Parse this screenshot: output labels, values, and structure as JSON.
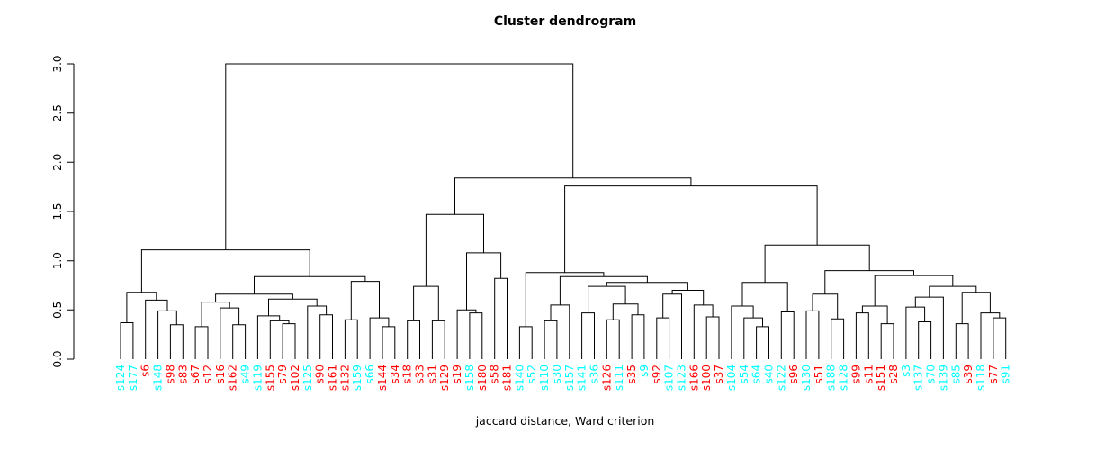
{
  "chart_data": {
    "type": "dendrogram",
    "title": "Cluster dendrogram",
    "xlabel": "jaccard distance, Ward criterion",
    "ylabel": "",
    "ylim": [
      0.0,
      3.0
    ],
    "yticks": [
      "0.0",
      "0.5",
      "1.0",
      "1.5",
      "2.0",
      "2.5",
      "3.0"
    ],
    "ytick_values": [
      0.0,
      0.5,
      1.0,
      1.5,
      2.0,
      2.5,
      3.0
    ],
    "grid": false,
    "line_color": "#000000",
    "label_colors": {
      "cluster_a": "#FF0000",
      "cluster_b": "#00FFFF"
    },
    "leaves": [
      {
        "label": "s124",
        "color": "#00FFFF"
      },
      {
        "label": "s177",
        "color": "#00FFFF"
      },
      {
        "label": "s6",
        "color": "#FF0000"
      },
      {
        "label": "s148",
        "color": "#00FFFF"
      },
      {
        "label": "s98",
        "color": "#FF0000"
      },
      {
        "label": "s83",
        "color": "#FF0000"
      },
      {
        "label": "s67",
        "color": "#FF0000"
      },
      {
        "label": "s12",
        "color": "#FF0000"
      },
      {
        "label": "s16",
        "color": "#FF0000"
      },
      {
        "label": "s162",
        "color": "#FF0000"
      },
      {
        "label": "s49",
        "color": "#00FFFF"
      },
      {
        "label": "s119",
        "color": "#00FFFF"
      },
      {
        "label": "s155",
        "color": "#FF0000"
      },
      {
        "label": "s79",
        "color": "#FF0000"
      },
      {
        "label": "s102",
        "color": "#FF0000"
      },
      {
        "label": "s125",
        "color": "#00FFFF"
      },
      {
        "label": "s90",
        "color": "#FF0000"
      },
      {
        "label": "s161",
        "color": "#FF0000"
      },
      {
        "label": "s132",
        "color": "#FF0000"
      },
      {
        "label": "s159",
        "color": "#00FFFF"
      },
      {
        "label": "s66",
        "color": "#00FFFF"
      },
      {
        "label": "s144",
        "color": "#FF0000"
      },
      {
        "label": "s34",
        "color": "#FF0000"
      },
      {
        "label": "s18",
        "color": "#FF0000"
      },
      {
        "label": "s33",
        "color": "#FF0000"
      },
      {
        "label": "s31",
        "color": "#FF0000"
      },
      {
        "label": "s129",
        "color": "#FF0000"
      },
      {
        "label": "s19",
        "color": "#FF0000"
      },
      {
        "label": "s158",
        "color": "#00FFFF"
      },
      {
        "label": "s180",
        "color": "#FF0000"
      },
      {
        "label": "s58",
        "color": "#FF0000"
      },
      {
        "label": "s181",
        "color": "#FF0000"
      },
      {
        "label": "s140",
        "color": "#00FFFF"
      },
      {
        "label": "s52",
        "color": "#00FFFF"
      },
      {
        "label": "s110",
        "color": "#00FFFF"
      },
      {
        "label": "s30",
        "color": "#00FFFF"
      },
      {
        "label": "s157",
        "color": "#00FFFF"
      },
      {
        "label": "s141",
        "color": "#00FFFF"
      },
      {
        "label": "s36",
        "color": "#00FFFF"
      },
      {
        "label": "s126",
        "color": "#FF0000"
      },
      {
        "label": "s111",
        "color": "#00FFFF"
      },
      {
        "label": "s35",
        "color": "#FF0000"
      },
      {
        "label": "s9",
        "color": "#00FFFF"
      },
      {
        "label": "s92",
        "color": "#FF0000"
      },
      {
        "label": "s107",
        "color": "#00FFFF"
      },
      {
        "label": "s123",
        "color": "#00FFFF"
      },
      {
        "label": "s166",
        "color": "#FF0000"
      },
      {
        "label": "s100",
        "color": "#FF0000"
      },
      {
        "label": "s37",
        "color": "#FF0000"
      },
      {
        "label": "s104",
        "color": "#00FFFF"
      },
      {
        "label": "s54",
        "color": "#00FFFF"
      },
      {
        "label": "s64",
        "color": "#00FFFF"
      },
      {
        "label": "s40",
        "color": "#00FFFF"
      },
      {
        "label": "s122",
        "color": "#00FFFF"
      },
      {
        "label": "s96",
        "color": "#FF0000"
      },
      {
        "label": "s130",
        "color": "#00FFFF"
      },
      {
        "label": "s51",
        "color": "#FF0000"
      },
      {
        "label": "s188",
        "color": "#00FFFF"
      },
      {
        "label": "s128",
        "color": "#00FFFF"
      },
      {
        "label": "s99",
        "color": "#FF0000"
      },
      {
        "label": "s11",
        "color": "#FF0000"
      },
      {
        "label": "s151",
        "color": "#FF0000"
      },
      {
        "label": "s28",
        "color": "#FF0000"
      },
      {
        "label": "s3",
        "color": "#00FFFF"
      },
      {
        "label": "s137",
        "color": "#00FFFF"
      },
      {
        "label": "s70",
        "color": "#00FFFF"
      },
      {
        "label": "s139",
        "color": "#00FFFF"
      },
      {
        "label": "s85",
        "color": "#00FFFF"
      },
      {
        "label": "s39",
        "color": "#FF0000"
      },
      {
        "label": "s118",
        "color": "#00FFFF"
      },
      {
        "label": "s77",
        "color": "#FF0000"
      },
      {
        "label": "s91",
        "color": "#00FFFF"
      }
    ],
    "tree": [
      3.0,
      [
        1.11,
        [
          0.68,
          [
            0.37,
            "s124",
            "s177"
          ],
          [
            0.6,
            "s6",
            [
              0.49,
              "s148",
              [
                0.35,
                "s98",
                "s83"
              ]
            ]
          ]
        ],
        [
          0.84,
          [
            0.66,
            [
              0.58,
              [
                0.33,
                "s67",
                "s12"
              ],
              [
                0.52,
                "s16",
                [
                  0.35,
                  "s162",
                  "s49"
                ]
              ]
            ],
            [
              0.61,
              [
                0.44,
                "s119",
                [
                  0.39,
                  "s155",
                  [
                    0.36,
                    "s79",
                    "s102"
                  ]
                ]
              ],
              [
                0.54,
                "s125",
                [
                  0.45,
                  "s90",
                  "s161"
                ]
              ]
            ]
          ],
          [
            0.79,
            [
              0.4,
              "s132",
              "s159"
            ],
            [
              0.42,
              "s66",
              [
                0.33,
                "s144",
                "s34"
              ]
            ]
          ]
        ]
      ],
      [
        1.84,
        [
          1.47,
          [
            0.74,
            [
              0.39,
              "s18",
              "s33"
            ],
            [
              0.39,
              "s31",
              "s129"
            ]
          ],
          [
            1.08,
            [
              0.5,
              "s19",
              [
                0.47,
                "s158",
                "s180"
              ]
            ],
            [
              0.82,
              "s58",
              "s181"
            ]
          ]
        ],
        [
          1.76,
          [
            0.88,
            [
              0.33,
              "s140",
              "s52"
            ],
            [
              0.84,
              [
                0.55,
                [
                  0.39,
                  "s110",
                  "s30"
                ],
                "s157"
              ],
              [
                0.78,
                [
                  0.74,
                  [
                    0.47,
                    "s141",
                    "s36"
                  ],
                  [
                    0.56,
                    [
                      0.4,
                      "s126",
                      "s111"
                    ],
                    [
                      0.45,
                      "s35",
                      "s9"
                    ]
                  ]
                ],
                [
                  0.7,
                  [
                    0.66,
                    [
                      0.42,
                      "s92",
                      "s107"
                    ],
                    "s123"
                  ],
                  [
                    0.55,
                    "s166",
                    [
                      0.43,
                      "s100",
                      "s37"
                    ]
                  ]
                ]
              ]
            ]
          ],
          [
            1.16,
            [
              0.78,
              [
                0.54,
                "s104",
                [
                  0.42,
                  "s54",
                  [
                    0.33,
                    "s64",
                    "s40"
                  ]
                ]
              ],
              [
                0.48,
                "s122",
                "s96"
              ]
            ],
            [
              0.9,
              [
                0.66,
                [
                  0.49,
                  "s130",
                  "s51"
                ],
                [
                  0.41,
                  "s188",
                  "s128"
                ]
              ],
              [
                0.85,
                [
                  0.54,
                  [
                    0.47,
                    "s99",
                    "s11"
                  ],
                  [
                    0.36,
                    "s151",
                    "s28"
                  ]
                ],
                [
                  0.74,
                  [
                    0.63,
                    [
                      0.53,
                      "s3",
                      [
                        0.38,
                        "s137",
                        "s70"
                      ]
                    ],
                    "s139"
                  ],
                  [
                    0.68,
                    [
                      0.36,
                      "s85",
                      "s39"
                    ],
                    [
                      0.47,
                      "s118",
                      [
                        0.42,
                        "s77",
                        "s91"
                      ]
                    ]
                  ]
                ]
              ]
            ]
          ]
        ]
      ]
    ]
  }
}
